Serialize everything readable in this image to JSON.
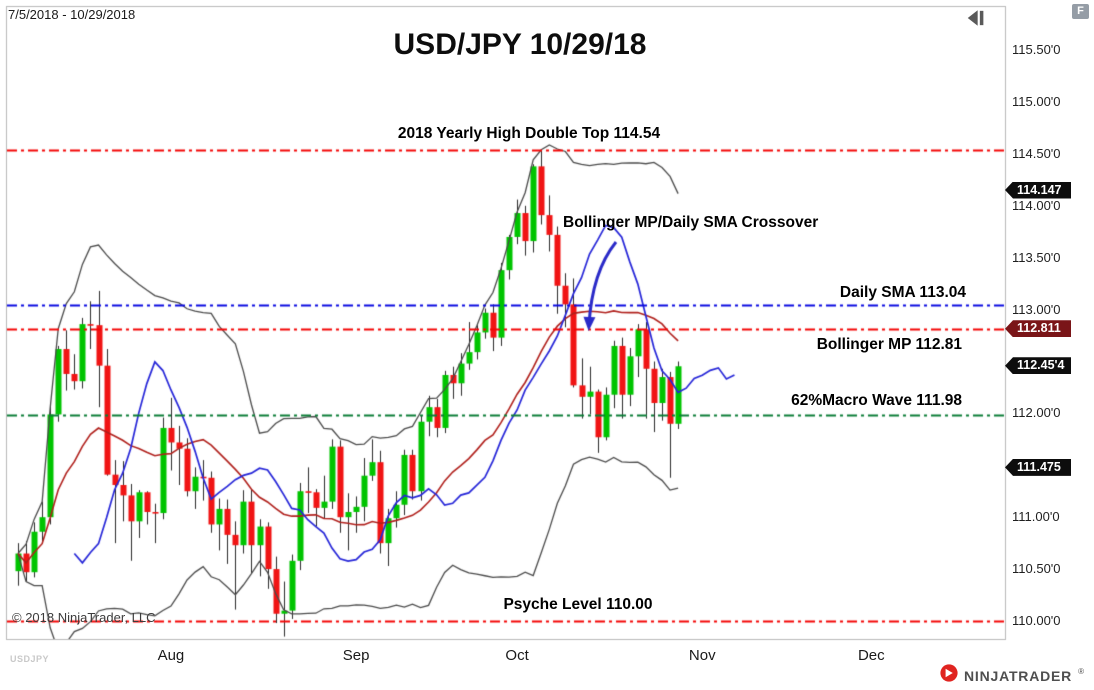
{
  "header": {
    "date_range": "7/5/2018 - 10/29/2018"
  },
  "controls": {
    "f_badge": "F"
  },
  "footer": {
    "copyright": "© 2018 NinjaTrader, LLC",
    "watermark": "USDJPY",
    "logo_text": "NINJATRADER",
    "logo_reg": "®"
  },
  "chart_data": {
    "type": "candlestick",
    "symbol": "USD/JPY",
    "title": "USD/JPY 10/29/18",
    "timeframe": "Daily",
    "style": {
      "up_color": "#00c400",
      "down_color": "#f01414",
      "wick_color": "#2a2a2a",
      "band_color": "#4a4a4a",
      "mp_color": "#b0201c",
      "sma_color": "#2626d8",
      "border_color": "#b8b8b8"
    },
    "y_axis": {
      "min": 109.8,
      "max": 115.9,
      "ticks": [
        {
          "value": 115.5,
          "label": "115.50'0"
        },
        {
          "value": 115.0,
          "label": "115.00'0"
        },
        {
          "value": 114.5,
          "label": "114.50'0"
        },
        {
          "value": 114.0,
          "label": "114.00'0"
        },
        {
          "value": 113.5,
          "label": "113.50'0"
        },
        {
          "value": 113.0,
          "label": "113.00'0"
        },
        {
          "value": 112.0,
          "label": "112.00'0"
        },
        {
          "value": 111.0,
          "label": "111.00'0"
        },
        {
          "value": 110.5,
          "label": "110.50'0"
        },
        {
          "value": 110.0,
          "label": "110.00'0"
        }
      ]
    },
    "x_axis": {
      "months": [
        {
          "label": "Aug",
          "bar_index": 19
        },
        {
          "label": "Sep",
          "bar_index": 42
        },
        {
          "label": "Oct",
          "bar_index": 62
        },
        {
          "label": "Nov",
          "bar_index": 85
        },
        {
          "label": "Dec",
          "bar_index": 106
        }
      ]
    },
    "levels": [
      {
        "label": "2018 Yearly High Double Top 114.54",
        "value": 114.54,
        "color": "#f40505"
      },
      {
        "label": "Daily SMA 113.04",
        "value": 113.04,
        "color": "#0a0ae0"
      },
      {
        "label": "Bollinger MP 112.81",
        "value": 112.81,
        "color": "#f40505"
      },
      {
        "label": "62%Macro Wave 111.98",
        "value": 111.98,
        "color": "#0b7d36"
      },
      {
        "label": "Psyche Level 110.00",
        "value": 110.0,
        "color": "#f40505"
      }
    ],
    "annotation": {
      "text": "Bollinger MP/Daily SMA Crossover",
      "color": "#2a2ac8",
      "arrow_from": [
        616,
        242
      ],
      "arrow_ctrl": [
        592,
        272
      ],
      "arrow_to": [
        589,
        325
      ]
    },
    "price_markers": [
      {
        "label": "114.147",
        "value": 114.147,
        "bg": "#0d0d0d"
      },
      {
        "label": "112.811",
        "value": 112.811,
        "bg": "#7a1518"
      },
      {
        "label": "112.45'4",
        "value": 112.454,
        "bg": "#0d0d0d"
      },
      {
        "label": "111.475",
        "value": 111.475,
        "bg": "#0d0d0d"
      }
    ],
    "indicators": {
      "bollinger": {
        "period": 20,
        "stdev": 2
      },
      "daily_sma": {
        "period": 7,
        "displacement": 7
      }
    },
    "candles": [
      [
        "7/5",
        110.48,
        110.75,
        110.34,
        110.65
      ],
      [
        "7/6",
        110.65,
        110.77,
        110.38,
        110.47
      ],
      [
        "7/9",
        110.47,
        110.95,
        110.42,
        110.86
      ],
      [
        "7/10",
        110.86,
        111.15,
        110.76,
        111.0
      ],
      [
        "7/11",
        111.0,
        112.08,
        110.93,
        111.99
      ],
      [
        "7/12",
        111.99,
        112.65,
        111.92,
        112.62
      ],
      [
        "7/13",
        112.62,
        112.8,
        112.22,
        112.38
      ],
      [
        "7/16",
        112.38,
        112.57,
        112.23,
        112.31
      ],
      [
        "7/17",
        112.31,
        112.92,
        112.24,
        112.86
      ],
      [
        "7/18",
        112.86,
        113.08,
        112.62,
        112.85
      ],
      [
        "7/19",
        112.85,
        113.18,
        112.06,
        112.46
      ],
      [
        "7/20",
        112.46,
        112.62,
        111.4,
        111.41
      ],
      [
        "7/23",
        111.41,
        111.55,
        110.75,
        111.31
      ],
      [
        "7/24",
        111.31,
        111.54,
        110.96,
        111.21
      ],
      [
        "7/25",
        111.21,
        111.32,
        110.58,
        110.96
      ],
      [
        "7/26",
        110.96,
        111.26,
        110.8,
        111.24
      ],
      [
        "7/27",
        111.24,
        111.25,
        110.93,
        111.05
      ],
      [
        "7/30",
        111.05,
        111.13,
        110.75,
        111.04
      ],
      [
        "7/31",
        111.04,
        111.96,
        110.98,
        111.86
      ],
      [
        "8/1",
        111.86,
        112.15,
        111.45,
        111.72
      ],
      [
        "8/2",
        111.72,
        111.88,
        111.31,
        111.66
      ],
      [
        "8/3",
        111.66,
        111.76,
        111.2,
        111.25
      ],
      [
        "8/6",
        111.25,
        111.48,
        111.08,
        111.39
      ],
      [
        "8/7",
        111.39,
        111.55,
        111.16,
        111.38
      ],
      [
        "8/8",
        111.38,
        111.44,
        110.85,
        110.93
      ],
      [
        "8/9",
        110.93,
        111.18,
        110.68,
        111.08
      ],
      [
        "8/10",
        111.08,
        111.17,
        110.55,
        110.83
      ],
      [
        "8/13",
        110.83,
        110.96,
        110.11,
        110.73
      ],
      [
        "8/14",
        110.73,
        111.26,
        110.65,
        111.15
      ],
      [
        "8/15",
        111.15,
        111.27,
        110.46,
        110.73
      ],
      [
        "8/16",
        110.73,
        110.98,
        110.43,
        110.91
      ],
      [
        "8/17",
        110.91,
        110.95,
        110.31,
        110.5
      ],
      [
        "8/20",
        110.5,
        110.62,
        109.98,
        110.07
      ],
      [
        "8/21",
        110.07,
        110.38,
        109.85,
        110.1
      ],
      [
        "8/22",
        110.1,
        110.64,
        110.02,
        110.58
      ],
      [
        "8/23",
        110.58,
        111.33,
        110.49,
        111.25
      ],
      [
        "8/24",
        111.25,
        111.48,
        111.04,
        111.24
      ],
      [
        "8/27",
        111.24,
        111.27,
        110.91,
        111.09
      ],
      [
        "8/28",
        111.09,
        111.4,
        110.99,
        111.15
      ],
      [
        "8/29",
        111.15,
        111.75,
        111.08,
        111.68
      ],
      [
        "8/30",
        111.68,
        111.74,
        110.85,
        111.0
      ],
      [
        "8/31",
        111.0,
        111.23,
        110.68,
        111.05
      ],
      [
        "9/3",
        111.05,
        111.2,
        110.85,
        111.1
      ],
      [
        "9/4",
        111.1,
        111.57,
        110.96,
        111.4
      ],
      [
        "9/5",
        111.4,
        111.75,
        111.35,
        111.53
      ],
      [
        "9/6",
        111.53,
        111.64,
        110.65,
        110.75
      ],
      [
        "9/7",
        110.75,
        111.08,
        110.53,
        110.99
      ],
      [
        "9/10",
        110.99,
        111.25,
        110.9,
        111.12
      ],
      [
        "9/11",
        111.12,
        111.65,
        111.02,
        111.6
      ],
      [
        "9/12",
        111.6,
        111.65,
        111.17,
        111.25
      ],
      [
        "9/13",
        111.25,
        111.98,
        111.16,
        111.92
      ],
      [
        "9/14",
        111.92,
        112.17,
        111.78,
        112.06
      ],
      [
        "9/17",
        112.06,
        112.14,
        111.77,
        111.86
      ],
      [
        "9/18",
        111.86,
        112.41,
        111.81,
        112.37
      ],
      [
        "9/19",
        112.37,
        112.45,
        112.14,
        112.29
      ],
      [
        "9/20",
        112.29,
        112.58,
        112.17,
        112.48
      ],
      [
        "9/21",
        112.48,
        112.88,
        112.42,
        112.59
      ],
      [
        "9/24",
        112.59,
        112.85,
        112.52,
        112.78
      ],
      [
        "9/25",
        112.78,
        113.01,
        112.72,
        112.97
      ],
      [
        "9/26",
        112.97,
        113.05,
        112.6,
        112.73
      ],
      [
        "9/27",
        112.73,
        113.45,
        112.65,
        113.38
      ],
      [
        "9/28",
        113.38,
        113.72,
        113.29,
        113.7
      ],
      [
        "10/1",
        113.7,
        114.06,
        113.63,
        113.93
      ],
      [
        "10/2",
        113.93,
        114.0,
        113.52,
        113.66
      ],
      [
        "10/3",
        113.66,
        114.4,
        113.55,
        114.38
      ],
      [
        "10/4",
        114.38,
        114.54,
        113.82,
        113.91
      ],
      [
        "10/5",
        113.91,
        114.1,
        113.56,
        113.72
      ],
      [
        "10/8",
        113.72,
        113.8,
        112.96,
        113.23
      ],
      [
        "10/9",
        113.23,
        113.35,
        112.83,
        113.05
      ],
      [
        "10/10",
        113.05,
        113.3,
        112.25,
        112.27
      ],
      [
        "10/11",
        112.27,
        112.53,
        111.95,
        112.16
      ],
      [
        "10/12",
        112.16,
        112.45,
        111.99,
        112.21
      ],
      [
        "10/15",
        112.21,
        112.23,
        111.62,
        111.77
      ],
      [
        "10/16",
        111.77,
        112.25,
        111.74,
        112.18
      ],
      [
        "10/17",
        112.18,
        112.7,
        112.05,
        112.65
      ],
      [
        "10/18",
        112.65,
        112.73,
        111.95,
        112.18
      ],
      [
        "10/19",
        112.18,
        112.63,
        112.07,
        112.55
      ],
      [
        "10/22",
        112.55,
        112.86,
        112.35,
        112.81
      ],
      [
        "10/23",
        112.81,
        112.88,
        111.95,
        112.43
      ],
      [
        "10/24",
        112.43,
        112.5,
        111.82,
        112.1
      ],
      [
        "10/25",
        112.1,
        112.43,
        111.93,
        112.35
      ],
      [
        "10/26",
        112.35,
        112.4,
        111.38,
        111.9
      ],
      [
        "10/29",
        111.9,
        112.5,
        111.85,
        112.454
      ]
    ]
  }
}
